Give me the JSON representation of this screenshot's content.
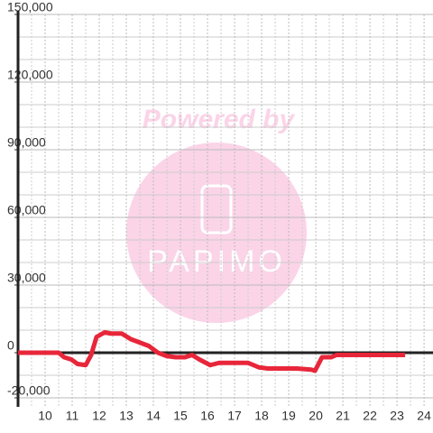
{
  "chart_data": {
    "type": "line",
    "watermark": [
      "Powered by",
      "PAPIMO"
    ],
    "x": [
      9,
      10.5,
      10.7,
      10.97,
      11.2,
      11.5,
      11.7,
      11.9,
      12.2,
      12.43,
      12.83,
      13.17,
      13.5,
      13.83,
      14.17,
      14.5,
      14.83,
      15.17,
      15.43,
      15.7,
      16.1,
      16.43,
      16.83,
      17.5,
      17.9,
      18.23,
      19.3,
      19.83,
      19.97,
      20.23,
      20.57,
      20.77,
      23.3
    ],
    "series": [
      {
        "color": "#e8263a",
        "values": [
          0,
          0,
          -2000,
          -3000,
          -5000,
          -5500,
          -1000,
          7000,
          9000,
          8500,
          8500,
          6000,
          4500,
          3000,
          0,
          -1500,
          -2000,
          -2000,
          -1000,
          -3000,
          -5500,
          -4500,
          -4500,
          -4500,
          -6500,
          -7000,
          -7000,
          -7500,
          -8000,
          -2000,
          -2000,
          -1000,
          -1000
        ]
      }
    ],
    "xlim": [
      9,
      24.33
    ],
    "xticks": [
      10,
      11,
      12,
      13,
      14,
      15,
      16,
      17,
      18,
      19,
      20,
      21,
      22,
      23,
      24
    ],
    "ylim": [
      -24000,
      150000
    ],
    "yticks": [
      {
        "value": -20000,
        "label": "-20,000"
      },
      0,
      {
        "value": 30000,
        "label": "30,000"
      },
      {
        "value": 60000,
        "label": "60,000"
      },
      {
        "value": 90000,
        "label": "90,000"
      },
      {
        "value": 120000,
        "label": "120,000"
      },
      {
        "value": 150000,
        "label": "150,000"
      }
    ],
    "y_minor_grid": [
      -10000,
      10000,
      20000,
      40000,
      50000,
      70000,
      80000,
      100000,
      110000,
      130000,
      140000
    ],
    "x_minor_grid": [
      9.5,
      10.5,
      11.5,
      12.5,
      13.5,
      14.5,
      15.5,
      16.5,
      17.5,
      18.5,
      19.5,
      20.5,
      21.5,
      22.5,
      23.5
    ],
    "grid": true
  }
}
